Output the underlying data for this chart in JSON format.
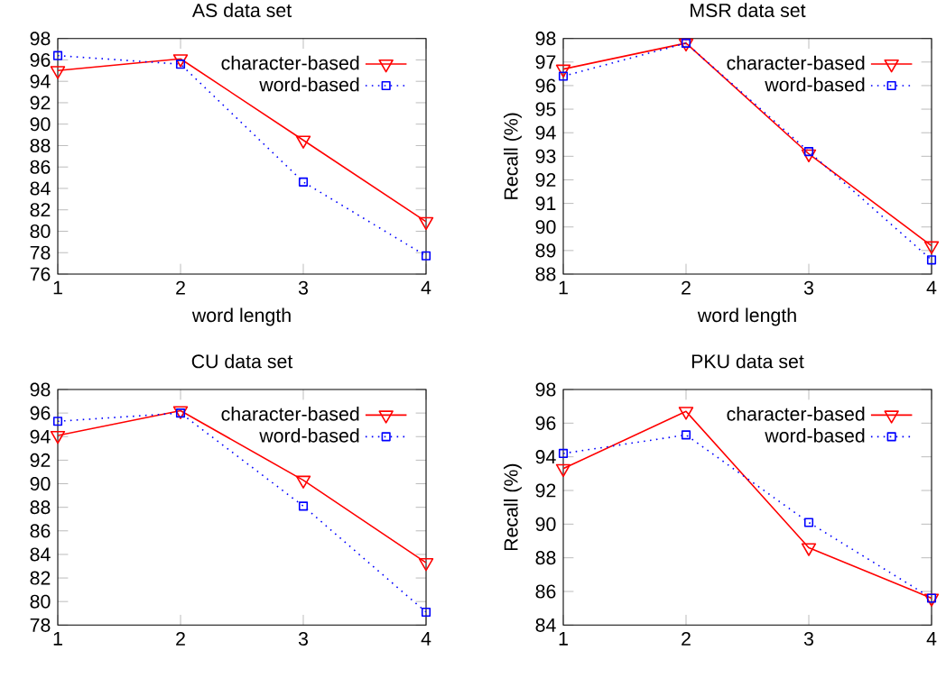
{
  "chart_data": [
    {
      "type": "line",
      "title": "AS data set",
      "xlabel": "word length",
      "x": [
        1,
        2,
        3,
        4
      ],
      "xlim": [
        1,
        4
      ],
      "xticks": [
        1,
        2,
        3,
        4
      ],
      "ylim": [
        76,
        98
      ],
      "yticks": [
        76,
        78,
        80,
        82,
        84,
        86,
        88,
        90,
        92,
        94,
        96,
        98
      ],
      "legend": "top right",
      "series": [
        {
          "name": "character-based",
          "color": "#ff0000",
          "marker": "triangle",
          "line_style": "solid",
          "values": [
            95.0,
            96.1,
            88.5,
            80.9
          ]
        },
        {
          "name": "word-based",
          "color": "#0000ff",
          "marker": "square",
          "line_style": "dotted",
          "values": [
            96.4,
            95.6,
            84.6,
            77.7
          ]
        }
      ]
    },
    {
      "type": "line",
      "title": "MSR data set",
      "xlabel": "word length",
      "ylabel": "Recall (%)",
      "x": [
        1,
        2,
        3,
        4
      ],
      "xlim": [
        1,
        4
      ],
      "xticks": [
        1,
        2,
        3,
        4
      ],
      "ylim": [
        88,
        98
      ],
      "yticks": [
        88,
        89,
        90,
        91,
        92,
        93,
        94,
        95,
        96,
        97,
        98
      ],
      "legend": "top right",
      "series": [
        {
          "name": "character-based",
          "color": "#ff0000",
          "marker": "triangle",
          "line_style": "solid",
          "values": [
            96.7,
            97.8,
            93.1,
            89.2
          ]
        },
        {
          "name": "word-based",
          "color": "#0000ff",
          "marker": "square",
          "line_style": "dotted",
          "values": [
            96.4,
            97.8,
            93.2,
            88.6
          ]
        }
      ]
    },
    {
      "type": "line",
      "title": "CU data set",
      "x": [
        1,
        2,
        3,
        4
      ],
      "xlim": [
        1,
        4
      ],
      "xticks": [
        1,
        2,
        3,
        4
      ],
      "ylim": [
        78,
        98
      ],
      "yticks": [
        78,
        80,
        82,
        84,
        86,
        88,
        90,
        92,
        94,
        96,
        98
      ],
      "legend": "top right",
      "series": [
        {
          "name": "character-based",
          "color": "#ff0000",
          "marker": "triangle",
          "line_style": "solid",
          "values": [
            94.1,
            96.2,
            90.3,
            83.3
          ]
        },
        {
          "name": "word-based",
          "color": "#0000ff",
          "marker": "square",
          "line_style": "dotted",
          "values": [
            95.3,
            96.0,
            88.1,
            79.1
          ]
        }
      ]
    },
    {
      "type": "line",
      "title": "PKU data set",
      "ylabel": "Recall (%)",
      "x": [
        1,
        2,
        3,
        4
      ],
      "xlim": [
        1,
        4
      ],
      "xticks": [
        1,
        2,
        3,
        4
      ],
      "ylim": [
        84,
        98
      ],
      "yticks": [
        84,
        86,
        88,
        90,
        92,
        94,
        96,
        98
      ],
      "legend": "top right",
      "series": [
        {
          "name": "character-based",
          "color": "#ff0000",
          "marker": "triangle",
          "line_style": "solid",
          "values": [
            93.3,
            96.7,
            88.6,
            85.6
          ]
        },
        {
          "name": "word-based",
          "color": "#0000ff",
          "marker": "square",
          "line_style": "dotted",
          "values": [
            94.2,
            95.3,
            90.1,
            85.6
          ]
        }
      ]
    }
  ]
}
